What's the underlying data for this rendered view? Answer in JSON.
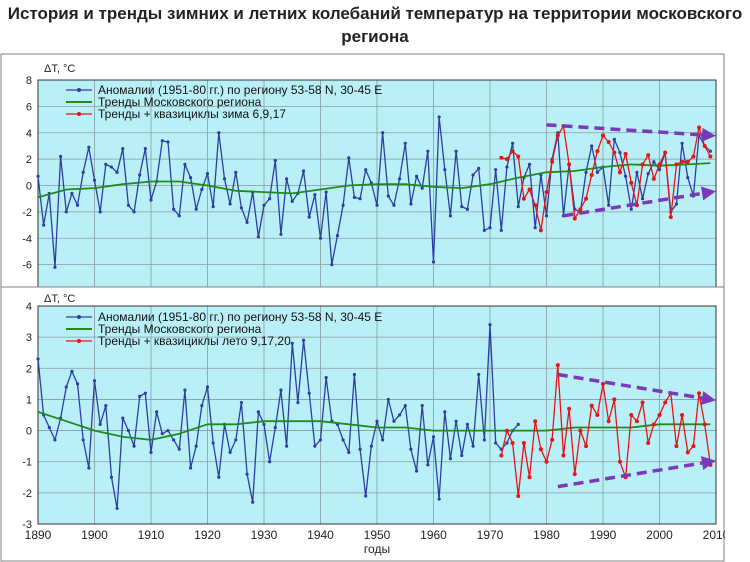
{
  "title": "История и тренды зимних и летних колебаний температур на территории московского региона",
  "colors": {
    "plot_bg": "#b9f0f8",
    "grid": "#8a9aa0",
    "anomaly": "#2b3fa3",
    "trend": "#1d8c1d",
    "quasi": "#e81414",
    "arrow": "#7b38b8"
  },
  "chart_data": [
    {
      "type": "line",
      "ylabel": "ΔT, °C",
      "xlim": [
        1890,
        2010
      ],
      "ylim": [
        -8,
        8
      ],
      "yticks": [
        -6,
        -4,
        -2,
        0,
        2,
        4,
        6,
        8
      ],
      "grid": true,
      "legend_position": "top",
      "series": [
        {
          "name": "Аномалии (1951-80 гг.) по региону 53-58 N, 30-45 E",
          "x": [
            1890,
            1891,
            1892,
            1893,
            1894,
            1895,
            1896,
            1897,
            1898,
            1899,
            1900,
            1901,
            1902,
            1903,
            1904,
            1905,
            1906,
            1907,
            1908,
            1909,
            1910,
            1911,
            1912,
            1913,
            1914,
            1915,
            1916,
            1917,
            1918,
            1919,
            1920,
            1921,
            1922,
            1923,
            1924,
            1925,
            1926,
            1927,
            1928,
            1929,
            1930,
            1931,
            1932,
            1933,
            1934,
            1935,
            1936,
            1937,
            1938,
            1939,
            1940,
            1941,
            1942,
            1943,
            1944,
            1945,
            1946,
            1947,
            1948,
            1949,
            1950,
            1951,
            1952,
            1953,
            1954,
            1955,
            1956,
            1957,
            1958,
            1959,
            1960,
            1961,
            1962,
            1963,
            1964,
            1965,
            1966,
            1967,
            1968,
            1969,
            1970,
            1971,
            1972,
            1973,
            1974,
            1975,
            1976,
            1977,
            1978,
            1979,
            1980,
            1981,
            1982,
            1983,
            1984,
            1985,
            1986,
            1987,
            1988,
            1989,
            1990,
            1991,
            1992,
            1993,
            1994,
            1995,
            1996,
            1997,
            1998,
            1999,
            2000,
            2001,
            2002,
            2003,
            2004,
            2005,
            2006,
            2007,
            2008,
            2009
          ],
          "values": [
            0.7,
            -3.0,
            -0.6,
            -6.2,
            2.2,
            -2.0,
            -0.6,
            -1.5,
            1.0,
            2.9,
            0.4,
            -2.0,
            1.6,
            1.4,
            1.0,
            2.8,
            -1.5,
            -2.0,
            0.8,
            2.8,
            -1.1,
            0.3,
            3.4,
            3.3,
            -1.8,
            -2.3,
            1.6,
            0.6,
            -1.8,
            -0.3,
            0.9,
            -1.6,
            4.0,
            0.5,
            -1.4,
            1.0,
            -1.7,
            -2.8,
            -0.5,
            -3.9,
            -1.5,
            -1.0,
            1.9,
            -3.7,
            0.5,
            -1.2,
            -0.6,
            1.1,
            -2.4,
            -0.7,
            -4.0,
            -0.5,
            -6.0,
            -3.8,
            -1.5,
            2.1,
            -0.9,
            -1.0,
            1.2,
            0.2,
            -1.5,
            4.0,
            -0.8,
            -1.5,
            0.5,
            3.2,
            -1.4,
            0.7,
            -0.2,
            2.6,
            -5.8,
            5.2,
            1.2,
            -2.3,
            2.6,
            -1.6,
            -1.8,
            0.8,
            1.3,
            -3.4,
            -3.2,
            1.2,
            -3.4,
            1.4,
            3.2,
            -1.6,
            0.6,
            1.6,
            -3.2,
            0.8,
            -2.3,
            2.0,
            4.0,
            -2.3,
            1.6,
            -1.8,
            -2.0,
            1.0,
            3.0,
            1.0,
            1.4,
            -1.5,
            3.5,
            2.5,
            0.7,
            -1.8,
            1.0,
            -1.0,
            0.9,
            1.8,
            1.2,
            2.5,
            -2.0,
            -1.4,
            3.2,
            0.6,
            -0.8,
            3.8,
            3.0,
            2.6
          ]
        },
        {
          "name": "Тренды Московского региона",
          "x": [
            1890,
            1895,
            1900,
            1905,
            1910,
            1915,
            1920,
            1925,
            1930,
            1935,
            1940,
            1945,
            1950,
            1955,
            1960,
            1965,
            1970,
            1975,
            1980,
            1985,
            1990,
            1995,
            2000,
            2005,
            2009
          ],
          "values": [
            -0.9,
            -0.3,
            -0.2,
            0.1,
            0.3,
            0.3,
            0.0,
            -0.4,
            -0.5,
            -0.6,
            -0.3,
            0.0,
            0.1,
            0.1,
            -0.1,
            -0.2,
            0.1,
            0.6,
            1.0,
            1.1,
            1.4,
            1.6,
            1.5,
            1.6,
            1.7
          ]
        },
        {
          "name": "Тренды + квазициклы зима 6,9,17",
          "x": [
            1972,
            1973,
            1974,
            1975,
            1976,
            1977,
            1978,
            1979,
            1980,
            1981,
            1982,
            1983,
            1984,
            1985,
            1986,
            1987,
            1988,
            1989,
            1990,
            1991,
            1992,
            1993,
            1994,
            1995,
            1996,
            1997,
            1998,
            1999,
            2000,
            2001,
            2002,
            2003,
            2004,
            2005,
            2006,
            2007,
            2008,
            2009
          ],
          "values": [
            2.1,
            2.0,
            2.6,
            2.2,
            -1.0,
            -0.3,
            -1.5,
            -3.4,
            -0.5,
            1.8,
            3.8,
            4.5,
            1.6,
            -2.5,
            -1.8,
            -1.0,
            0.8,
            2.6,
            3.8,
            3.3,
            2.5,
            1.0,
            2.4,
            0.2,
            -1.5,
            1.6,
            2.3,
            0.5,
            1.6,
            2.5,
            -2.4,
            1.6,
            1.8,
            1.8,
            2.2,
            4.4,
            3.0,
            2.2
          ]
        }
      ],
      "annotations": [
        {
          "type": "arrow",
          "from": [
            1980,
            4.6
          ],
          "to": [
            2009,
            3.8
          ]
        },
        {
          "type": "arrow",
          "from": [
            1983,
            -2.3
          ],
          "to": [
            2009,
            -0.5
          ]
        }
      ]
    },
    {
      "type": "line",
      "ylabel": "ΔT, °C",
      "xlabel": "годы",
      "xlim": [
        1890,
        2010
      ],
      "ylim": [
        -3,
        4
      ],
      "xticks": [
        1890,
        1900,
        1910,
        1920,
        1930,
        1940,
        1950,
        1960,
        1970,
        1980,
        1990,
        2000,
        2010
      ],
      "yticks": [
        -3,
        -2,
        -1,
        0,
        1,
        2,
        3,
        4
      ],
      "grid": true,
      "legend_position": "top",
      "series": [
        {
          "name": "Аномалии (1951-80 гг.) по региону 53-58 N, 30-45 E",
          "x": [
            1890,
            1891,
            1892,
            1893,
            1894,
            1895,
            1896,
            1897,
            1898,
            1899,
            1900,
            1901,
            1902,
            1903,
            1904,
            1905,
            1906,
            1907,
            1908,
            1909,
            1910,
            1911,
            1912,
            1913,
            1914,
            1915,
            1916,
            1917,
            1918,
            1919,
            1920,
            1921,
            1922,
            1923,
            1924,
            1925,
            1926,
            1927,
            1928,
            1929,
            1930,
            1931,
            1932,
            1933,
            1934,
            1935,
            1936,
            1937,
            1938,
            1939,
            1940,
            1941,
            1942,
            1943,
            1944,
            1945,
            1946,
            1947,
            1948,
            1949,
            1950,
            1951,
            1952,
            1953,
            1954,
            1955,
            1956,
            1957,
            1958,
            1959,
            1960,
            1961,
            1962,
            1963,
            1964,
            1965,
            1966,
            1967,
            1968,
            1969,
            1970,
            1971,
            1972,
            1973,
            1974,
            1975
          ],
          "values": [
            2.3,
            0.5,
            0.1,
            -0.3,
            0.4,
            1.4,
            1.9,
            1.5,
            -0.3,
            -1.2,
            1.6,
            0.2,
            0.8,
            -1.5,
            -2.5,
            0.4,
            0.0,
            -0.5,
            1.1,
            1.2,
            -0.7,
            0.6,
            -0.1,
            0.0,
            -0.3,
            -0.6,
            1.3,
            -1.2,
            -0.5,
            0.8,
            1.4,
            -0.4,
            -1.5,
            0.2,
            -0.7,
            -0.3,
            0.9,
            -1.4,
            -2.3,
            0.6,
            0.2,
            -1.0,
            0.1,
            1.3,
            -0.5,
            2.8,
            0.9,
            2.9,
            1.2,
            -0.5,
            -0.3,
            1.7,
            0.3,
            0.2,
            -0.3,
            -0.7,
            1.8,
            -0.6,
            -2.1,
            -0.5,
            0.3,
            -0.3,
            1.0,
            0.3,
            0.5,
            0.8,
            -0.6,
            -1.3,
            0.8,
            -1.1,
            -0.2,
            -2.2,
            0.6,
            -0.9,
            0.3,
            -0.8,
            0.2,
            -0.5,
            1.8,
            -0.3,
            3.4,
            -0.4,
            -0.6,
            -0.4,
            0.0,
            0.2
          ]
        },
        {
          "name": "Тренды Московского региона",
          "x": [
            1890,
            1895,
            1900,
            1905,
            1910,
            1915,
            1920,
            1925,
            1930,
            1935,
            1940,
            1945,
            1950,
            1955,
            1960,
            1965,
            1970,
            1975,
            1980,
            1985,
            1990,
            1995,
            2000,
            2005,
            2009
          ],
          "values": [
            0.6,
            0.3,
            0.0,
            -0.2,
            -0.3,
            -0.1,
            0.2,
            0.2,
            0.3,
            0.3,
            0.3,
            0.2,
            0.1,
            0.1,
            0.0,
            0.0,
            0.0,
            0.0,
            0.0,
            0.1,
            0.1,
            0.1,
            0.2,
            0.2,
            0.2
          ]
        },
        {
          "name": "Тренды + квазициклы лето 9,17,20",
          "x": [
            1972,
            1973,
            1974,
            1975,
            1976,
            1977,
            1978,
            1979,
            1980,
            1981,
            1982,
            1983,
            1984,
            1985,
            1986,
            1987,
            1988,
            1989,
            1990,
            1991,
            1992,
            1993,
            1994,
            1995,
            1996,
            1997,
            1998,
            1999,
            2000,
            2001,
            2002,
            2003,
            2004,
            2005,
            2006,
            2007,
            2008,
            2009
          ],
          "values": [
            -0.8,
            0.0,
            -0.4,
            -2.1,
            -0.4,
            -1.5,
            0.3,
            -0.6,
            -1.0,
            -0.3,
            2.1,
            -0.8,
            0.7,
            -1.4,
            0.0,
            -0.5,
            0.8,
            0.5,
            1.5,
            0.3,
            1.0,
            -1.0,
            -1.5,
            0.5,
            0.3,
            0.9,
            -0.4,
            0.2,
            0.5,
            0.9,
            1.2,
            -0.5,
            0.5,
            -0.7,
            -0.5,
            1.2,
            0.2,
            -1.1
          ]
        }
      ],
      "annotations": [
        {
          "type": "arrow",
          "from": [
            1982,
            1.8
          ],
          "to": [
            2009,
            1.0
          ]
        },
        {
          "type": "arrow",
          "from": [
            1982,
            -1.8
          ],
          "to": [
            2009,
            -1.0
          ]
        }
      ]
    }
  ]
}
